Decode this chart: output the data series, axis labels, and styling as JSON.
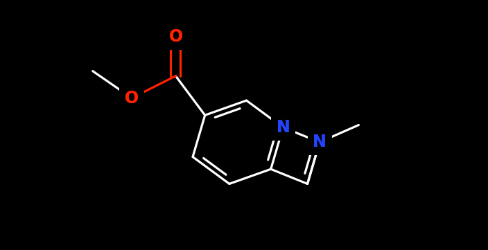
{
  "background": "#000000",
  "figsize": [
    7.04,
    3.61
  ],
  "dpi": 100,
  "bond_lw": 2.3,
  "font_size": 17,
  "white": "#ffffff",
  "red": "#ff2200",
  "blue": "#2244ff"
}
